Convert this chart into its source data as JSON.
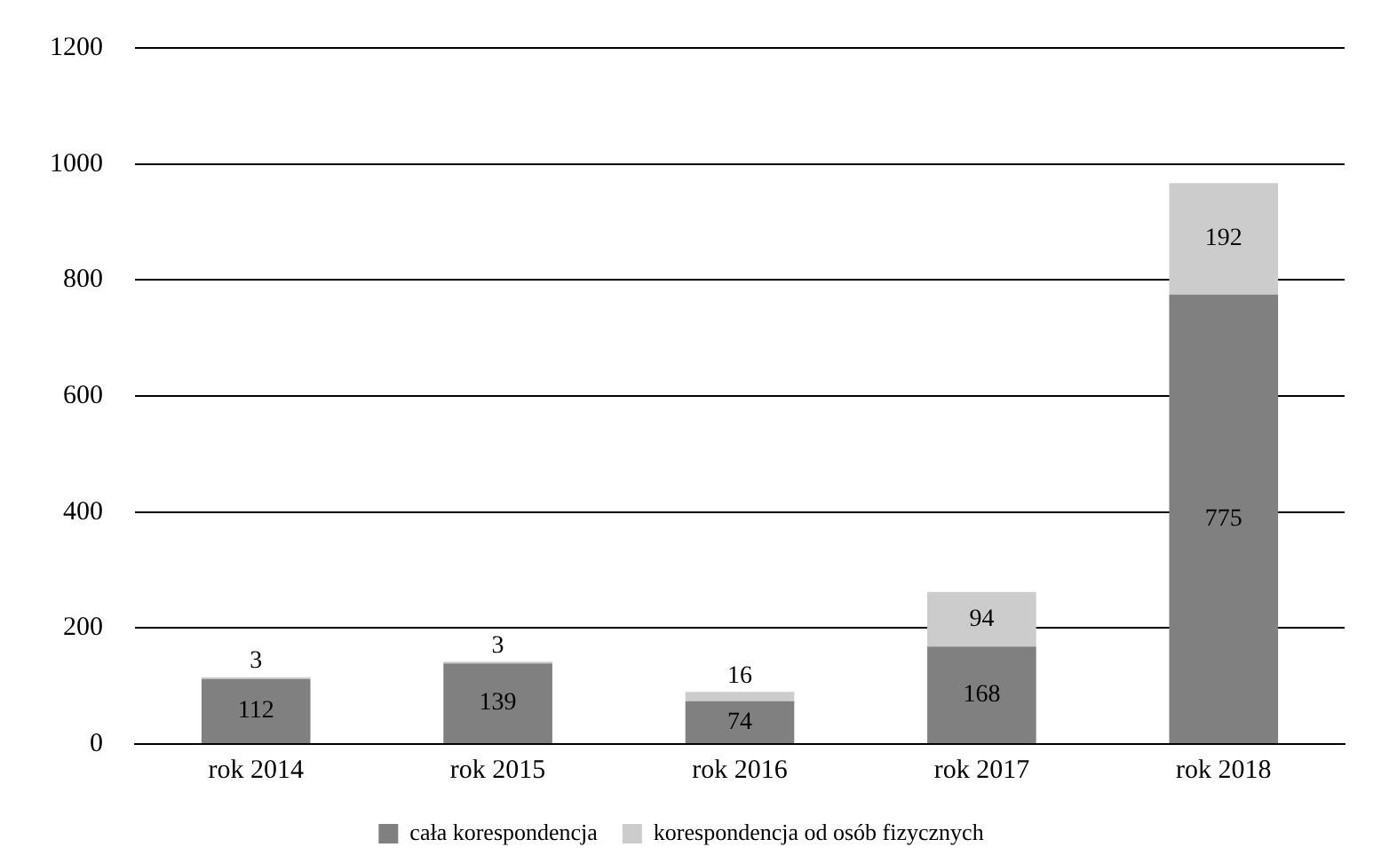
{
  "chart_data": {
    "type": "bar",
    "stacked": true,
    "categories": [
      "rok 2014",
      "rok 2015",
      "rok 2016",
      "rok 2017",
      "rok 2018"
    ],
    "series": [
      {
        "name": "cała korespondencja",
        "color": "#808080",
        "values": [
          112,
          139,
          74,
          168,
          775
        ]
      },
      {
        "name": "korespondencja od osób fizycznych",
        "color": "#cccccc",
        "values": [
          3,
          3,
          16,
          94,
          192
        ]
      }
    ],
    "ylim": [
      0,
      1200
    ],
    "yticks": [
      0,
      200,
      400,
      600,
      800,
      1000,
      1200
    ],
    "grid": "y",
    "legend": "bottom",
    "data_labels": true
  }
}
